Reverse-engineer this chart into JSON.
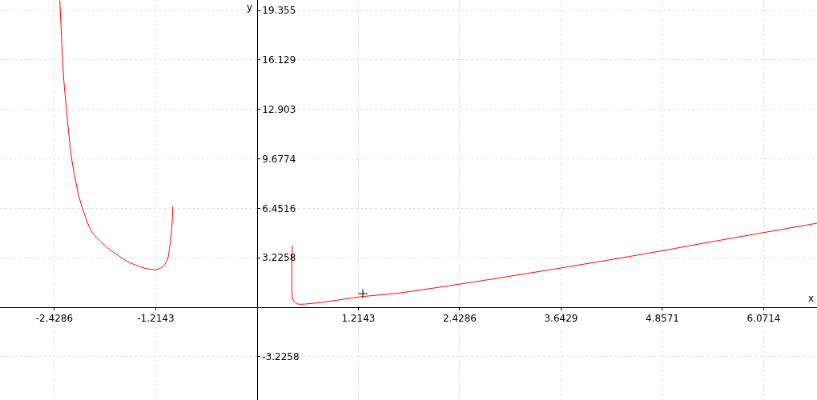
{
  "chart_data": {
    "type": "line",
    "xlabel": "x",
    "ylabel": "y",
    "xlim": [
      -3.08,
      6.71
    ],
    "ylim": [
      -6.05,
      20.04
    ],
    "xticks": [
      -2.4286,
      -1.2143,
      1.2143,
      2.4286,
      3.6429,
      4.8571,
      6.0714
    ],
    "yticks": [
      -3.2258,
      3.2258,
      6.4516,
      9.6774,
      12.903,
      16.129,
      19.355
    ],
    "grid": true,
    "marker": "none",
    "series": [
      {
        "color": "#ff0000",
        "x": [
          -2.363,
          -2.315,
          -2.219,
          -2.123,
          -1.979,
          -1.787,
          -1.547,
          -1.354,
          -1.2,
          -1.114,
          -1.066,
          -1.037,
          -1.018,
          -1.009
        ],
        "values": [
          20.0,
          14.8,
          9.6,
          7.0,
          4.9,
          3.86,
          2.97,
          2.56,
          2.45,
          2.71,
          3.24,
          4.38,
          5.43,
          6.58
        ]
      },
      {
        "color": "#ff0000",
        "x": [
          0.423,
          0.432,
          0.49,
          0.759,
          1.239,
          1.72,
          2.68,
          3.64,
          4.6,
          5.56,
          6.71
        ],
        "values": [
          4.02,
          0.47,
          0.21,
          0.31,
          0.68,
          0.94,
          1.72,
          2.56,
          3.44,
          4.38,
          5.48
        ]
      },
      {
        "type": "scatter",
        "marker": "cross",
        "color": "#000000",
        "x": [
          1.268
        ],
        "values": [
          0.89
        ]
      }
    ]
  }
}
